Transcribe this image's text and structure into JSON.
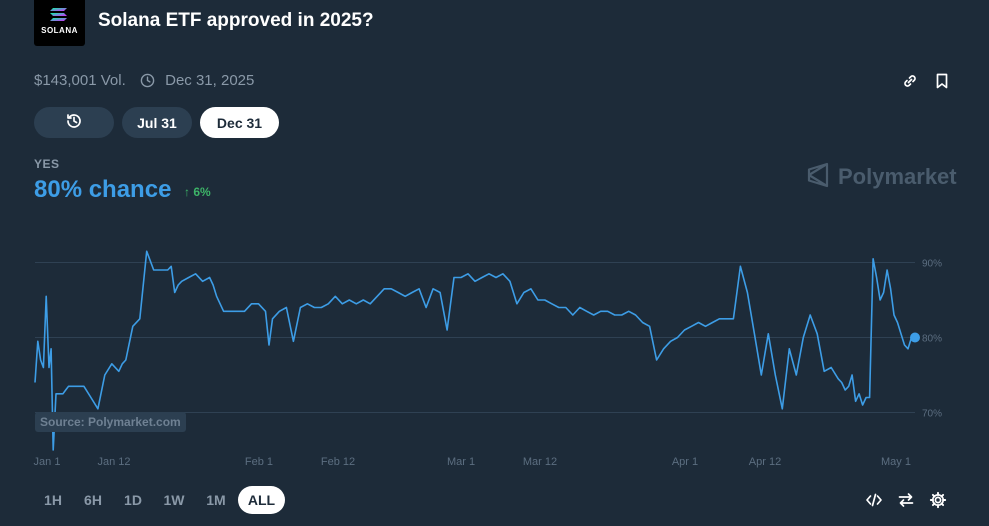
{
  "header": {
    "logo_text": "SOLANA",
    "title": "Solana ETF approved in 2025?"
  },
  "meta": {
    "volume": "$143,001 Vol.",
    "end_date": "Dec 31, 2025"
  },
  "date_pills": [
    "Jul 31",
    "Dec 31"
  ],
  "date_pill_active": "Dec 31",
  "outcome": {
    "label": "YES",
    "chance": "80% chance",
    "change": "6%"
  },
  "brand": "Polymarket",
  "source": "Source: Polymarket.com",
  "ranges": [
    "1H",
    "6H",
    "1D",
    "1W",
    "1M",
    "ALL"
  ],
  "range_active": "ALL",
  "colors": {
    "line": "#3d9de6",
    "up": "#3db468",
    "bg": "#1d2b39"
  },
  "icons": [
    "link-icon",
    "bookmark-icon",
    "history-icon",
    "clock-icon",
    "code-icon",
    "swap-icon",
    "gear-icon"
  ],
  "chart_data": {
    "type": "line",
    "title": "",
    "xlabel": "",
    "ylabel": "",
    "x_ticks": [
      "Jan 1",
      "Jan 12",
      "Feb 1",
      "Feb 12",
      "Mar 1",
      "Mar 12",
      "Apr 1",
      "Apr 12",
      "May 1"
    ],
    "y_ticks": [
      70,
      80,
      90
    ],
    "y_tick_labels": [
      "70%",
      "80%",
      "90%"
    ],
    "ylim": [
      65,
      95
    ],
    "xlim": [
      0,
      126
    ],
    "grid": true,
    "series": [
      {
        "x": [
          0,
          0.4,
          0.8,
          1.2,
          1.6,
          2,
          2.3,
          2.6,
          3,
          3.3,
          3.6,
          4,
          4.4,
          4.8,
          5.2,
          6,
          7,
          8,
          9,
          10,
          11,
          12,
          12.5,
          13,
          14,
          15,
          16,
          17,
          18,
          18.5,
          19,
          19.5,
          20,
          20.5,
          21,
          22,
          23,
          24,
          25,
          25.5,
          26,
          26.5,
          27,
          28,
          29,
          30,
          31,
          32,
          33,
          33.5,
          34,
          35,
          36,
          37,
          38,
          39,
          40,
          41,
          42,
          43,
          44,
          45,
          46,
          47,
          48,
          49,
          50,
          51,
          52,
          53,
          54,
          55,
          56,
          57,
          58,
          59,
          60,
          61,
          62,
          63,
          64,
          65,
          66,
          67,
          68,
          69,
          70,
          71,
          72,
          73,
          74,
          75,
          76,
          77,
          78,
          79,
          80,
          81,
          82,
          83,
          84,
          85,
          86,
          87,
          88,
          89,
          90,
          91,
          92,
          93,
          94,
          95,
          96,
          97,
          98,
          99,
          100,
          101,
          102,
          103,
          104,
          105,
          106,
          107,
          108,
          109,
          110,
          111,
          112,
          113,
          114,
          115,
          115.5,
          116,
          116.5,
          117,
          117.5,
          118,
          118.5,
          119,
          119.5,
          120,
          120.5,
          121,
          121.5,
          122,
          122.5,
          123,
          123.5,
          124,
          124.5,
          125,
          125.5,
          126
        ],
        "y": [
          74,
          79.5,
          77,
          76,
          85.5,
          76,
          78.5,
          65,
          72.5,
          72.5,
          72.5,
          72.5,
          73,
          73.5,
          73.5,
          73.5,
          73.5,
          72,
          70.5,
          75,
          76.5,
          75.5,
          76.5,
          77,
          81.5,
          82.5,
          91.5,
          89,
          89,
          89,
          89,
          89.5,
          86,
          87,
          87.5,
          88,
          88.5,
          87.5,
          88,
          87,
          85.5,
          84.5,
          83.5,
          83.5,
          83.5,
          83.5,
          84.5,
          84.5,
          83.5,
          79,
          82.5,
          83.5,
          84,
          79.5,
          84,
          84.5,
          84,
          84,
          84.5,
          85.5,
          84.5,
          85,
          84.5,
          85,
          84.5,
          85.5,
          86.5,
          86.5,
          86,
          85.5,
          86,
          86.5,
          84,
          86.5,
          86,
          81,
          88,
          88,
          88.5,
          87.5,
          88,
          88.5,
          88,
          88.5,
          87.5,
          84.5,
          86,
          86.5,
          85,
          85,
          84.5,
          84,
          84,
          83,
          84,
          83.5,
          83,
          83.5,
          83.5,
          83,
          83,
          83.5,
          83,
          82,
          81.5,
          77,
          78.5,
          79.5,
          80,
          81,
          81.5,
          82,
          81.5,
          82,
          82.5,
          82.5,
          82.5,
          89.5,
          86,
          80.5,
          75,
          80.5,
          75,
          70.5,
          78.5,
          75,
          80,
          83,
          80.5,
          75.5,
          76,
          74.5,
          74,
          73,
          73.5,
          75,
          71.5,
          72.5,
          71,
          72,
          72,
          90.5,
          88,
          85,
          86,
          89,
          86.5,
          83,
          82,
          80.5,
          79,
          78.5,
          80,
          80
        ]
      }
    ],
    "last_value": 80
  }
}
